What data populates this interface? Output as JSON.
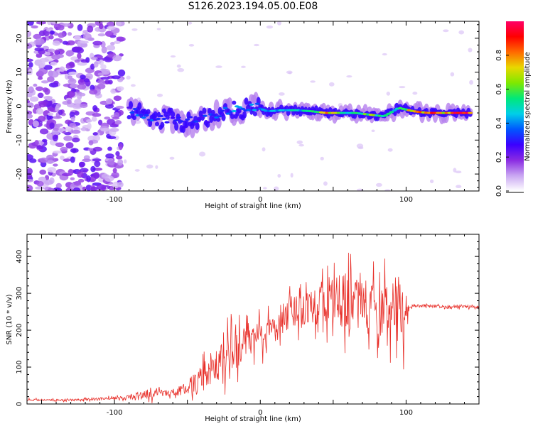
{
  "title": "S126.2023.194.05.00.E08",
  "chart_data": [
    {
      "type": "heatmap",
      "xlabel": "Height of straight line (km)",
      "ylabel": "Frequency (Hz)",
      "xlim": [
        -160,
        150
      ],
      "ylim": [
        -25,
        25
      ],
      "x_ticks": [
        -100,
        0,
        100
      ],
      "y_ticks": [
        -20,
        -10,
        0,
        10,
        20
      ],
      "colorbar": {
        "label": "Normalized spectral amplitude",
        "range": [
          0,
          1
        ],
        "ticks": [
          "0.0",
          "0.2",
          "0.4",
          "0.6",
          "0.8"
        ],
        "colormap": [
          "#ffffff",
          "#c9a6f2",
          "#8a2be2",
          "#3b00ff",
          "#0057ff",
          "#00cfe8",
          "#00e87a",
          "#7ee800",
          "#e8d800",
          "#ff6a00",
          "#ff0000",
          "#ff0066"
        ]
      },
      "noise_region_x": [
        -160,
        -95
      ],
      "ridge": [
        {
          "x": -90,
          "f": -1,
          "a": 0.3
        },
        {
          "x": -82,
          "f": -2,
          "a": 0.4
        },
        {
          "x": -72,
          "f": -5,
          "a": 0.35
        },
        {
          "x": -62,
          "f": -3,
          "a": 0.35
        },
        {
          "x": -52,
          "f": -5,
          "a": 0.35
        },
        {
          "x": -42,
          "f": -4,
          "a": 0.3
        },
        {
          "x": -32,
          "f": -3,
          "a": 0.35
        },
        {
          "x": -22,
          "f": -1.5,
          "a": 0.4
        },
        {
          "x": -12,
          "f": -1,
          "a": 0.4
        },
        {
          "x": -5,
          "f": 0,
          "a": 0.45
        },
        {
          "x": 5,
          "f": -1.5,
          "a": 0.4
        },
        {
          "x": 15,
          "f": -1.2,
          "a": 0.45
        },
        {
          "x": 25,
          "f": -1.2,
          "a": 0.5
        },
        {
          "x": 35,
          "f": -1.5,
          "a": 0.6
        },
        {
          "x": 45,
          "f": -2,
          "a": 0.85
        },
        {
          "x": 55,
          "f": -2,
          "a": 0.6
        },
        {
          "x": 65,
          "f": -2,
          "a": 0.55
        },
        {
          "x": 75,
          "f": -2.5,
          "a": 0.7
        },
        {
          "x": 85,
          "f": -3,
          "a": 0.5
        },
        {
          "x": 95,
          "f": -0.5,
          "a": 0.55
        },
        {
          "x": 105,
          "f": -1.5,
          "a": 0.8
        },
        {
          "x": 115,
          "f": -2,
          "a": 0.9
        },
        {
          "x": 125,
          "f": -2,
          "a": 0.75
        },
        {
          "x": 135,
          "f": -2,
          "a": 0.95
        },
        {
          "x": 145,
          "f": -2,
          "a": 0.9
        }
      ]
    },
    {
      "type": "line",
      "xlabel": "Height of straight line (km)",
      "ylabel": "SNR (10 * v/v)",
      "xlim": [
        -160,
        150
      ],
      "ylim": [
        0,
        460
      ],
      "x_ticks": [
        -100,
        0,
        100
      ],
      "y_ticks": [
        0,
        100,
        200,
        300,
        400
      ],
      "color": "#e8302a",
      "series": [
        {
          "x": [
            -160,
            -140,
            -120,
            -100,
            -90,
            -80,
            -75,
            -70,
            -65,
            -60,
            -55,
            -50,
            -45,
            -40,
            -35,
            -30,
            -25,
            -20,
            -15,
            -10,
            -5,
            0,
            5,
            10,
            15,
            20,
            25,
            30,
            35,
            40,
            45,
            50,
            55,
            60,
            65,
            70,
            75,
            80,
            85,
            90,
            95,
            100,
            102,
            105,
            110,
            120,
            130,
            140,
            150
          ],
          "y": [
            12,
            10,
            12,
            15,
            18,
            25,
            30,
            35,
            30,
            30,
            35,
            45,
            55,
            70,
            85,
            100,
            120,
            140,
            155,
            165,
            175,
            185,
            195,
            210,
            225,
            240,
            255,
            265,
            275,
            270,
            275,
            280,
            280,
            275,
            270,
            265,
            265,
            265,
            260,
            250,
            245,
            240,
            260,
            265,
            265,
            265,
            262,
            265,
            262
          ],
          "amplitude": [
            5,
            5,
            6,
            8,
            12,
            20,
            30,
            25,
            15,
            20,
            30,
            40,
            60,
            70,
            80,
            90,
            100,
            110,
            110,
            110,
            100,
            90,
            80,
            70,
            70,
            80,
            90,
            100,
            110,
            120,
            120,
            130,
            140,
            150,
            160,
            160,
            160,
            160,
            150,
            150,
            160,
            170,
            12,
            10,
            8,
            8,
            8,
            8,
            8
          ]
        }
      ]
    }
  ]
}
